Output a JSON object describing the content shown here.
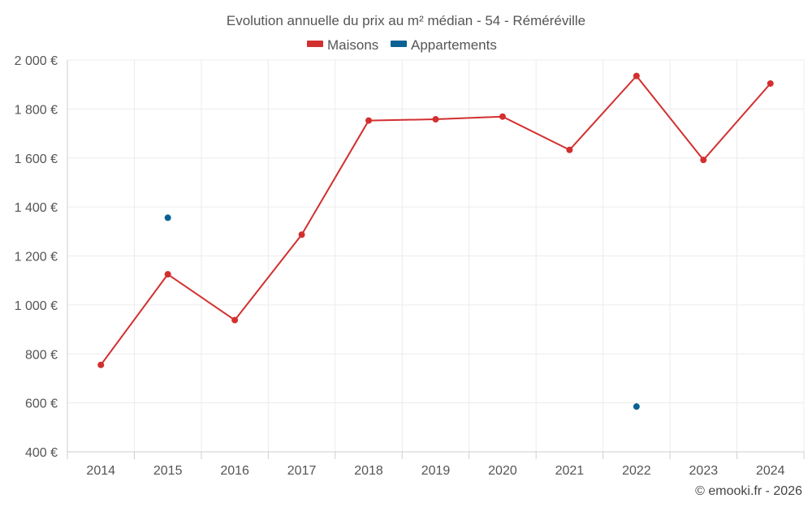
{
  "chart_data": {
    "type": "line",
    "title": "Evolution annuelle du prix au m² médian - 54 - Réméréville",
    "categories": [
      "2014",
      "2015",
      "2016",
      "2017",
      "2018",
      "2019",
      "2020",
      "2021",
      "2022",
      "2023",
      "2024"
    ],
    "ylim": [
      400,
      2000
    ],
    "yticks": [
      400,
      600,
      800,
      1000,
      1200,
      1400,
      1600,
      1800,
      2000
    ],
    "ytick_labels": [
      "400 €",
      "600 €",
      "800 €",
      "1 000 €",
      "1 200 €",
      "1 400 €",
      "1 600 €",
      "1 800 €",
      "2 000 €"
    ],
    "grid": true,
    "legend_position": "top-center",
    "series": [
      {
        "name": "Maisons",
        "color": "#d32f2f",
        "line": true,
        "values": [
          755,
          1125,
          938,
          1287,
          1753,
          1758,
          1769,
          1633,
          1935,
          1592,
          1904
        ]
      },
      {
        "name": "Appartements",
        "color": "#0b6193",
        "line": false,
        "values": [
          null,
          1356,
          null,
          null,
          null,
          null,
          null,
          null,
          585,
          null,
          null
        ]
      }
    ]
  },
  "credit": "© emooki.fr - 2026"
}
